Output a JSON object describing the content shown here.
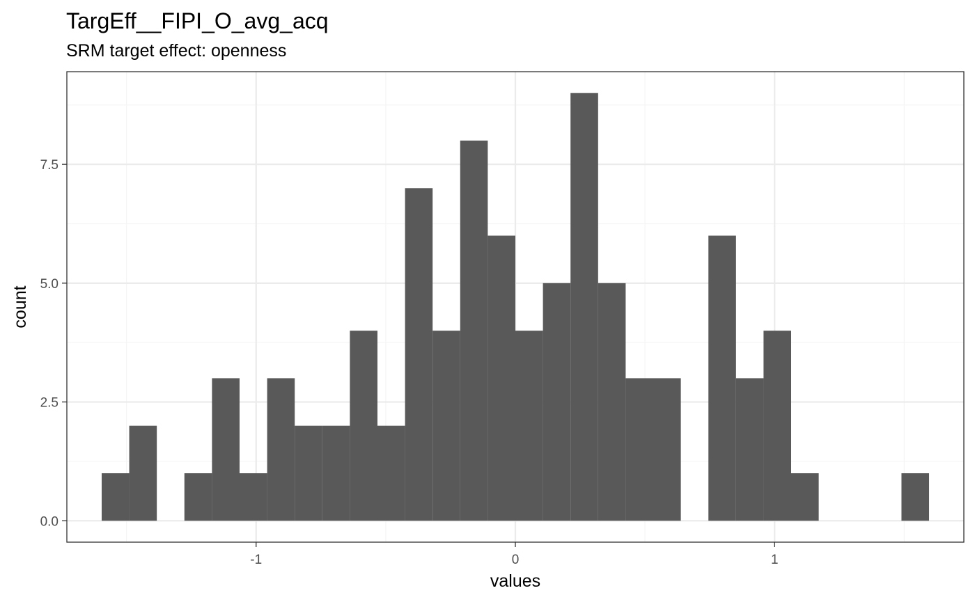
{
  "chart_data": {
    "type": "bar",
    "title": "TargEff__FIPI_O_avg_acq",
    "subtitle": "SRM target effect: openness",
    "xlabel": "values",
    "ylabel": "count",
    "xlim": [
      -1.73,
      1.73
    ],
    "ylim": [
      -0.45,
      9.45
    ],
    "x_ticks": [
      {
        "value": -1,
        "label": "-1"
      },
      {
        "value": 0,
        "label": "0"
      },
      {
        "value": 1,
        "label": "1"
      }
    ],
    "y_ticks": [
      {
        "value": 0,
        "label": "0.0"
      },
      {
        "value": 2.5,
        "label": "2.5"
      },
      {
        "value": 5,
        "label": "5.0"
      },
      {
        "value": 7.5,
        "label": "7.5"
      }
    ],
    "x_minor_breaks": [
      -1.5,
      -0.5,
      0.5,
      1.5
    ],
    "y_minor_breaks": [
      1.25,
      3.75,
      6.25,
      8.75
    ],
    "grid": true,
    "bin_width": 0.1064,
    "bins": [
      {
        "x0": -1.5957,
        "count": 1
      },
      {
        "x0": -1.4894,
        "count": 2
      },
      {
        "x0": -1.383,
        "count": 0
      },
      {
        "x0": -1.2766,
        "count": 1
      },
      {
        "x0": -1.1702,
        "count": 3
      },
      {
        "x0": -1.0638,
        "count": 1
      },
      {
        "x0": -0.9574,
        "count": 3
      },
      {
        "x0": -0.8511,
        "count": 2
      },
      {
        "x0": -0.7447,
        "count": 2
      },
      {
        "x0": -0.6383,
        "count": 4
      },
      {
        "x0": -0.5319,
        "count": 2
      },
      {
        "x0": -0.4255,
        "count": 7
      },
      {
        "x0": -0.3191,
        "count": 4
      },
      {
        "x0": -0.2128,
        "count": 8
      },
      {
        "x0": -0.1064,
        "count": 6
      },
      {
        "x0": 0.0,
        "count": 4
      },
      {
        "x0": 0.1064,
        "count": 5
      },
      {
        "x0": 0.2128,
        "count": 9
      },
      {
        "x0": 0.3191,
        "count": 5
      },
      {
        "x0": 0.4255,
        "count": 3
      },
      {
        "x0": 0.5319,
        "count": 3
      },
      {
        "x0": 0.6383,
        "count": 0
      },
      {
        "x0": 0.7447,
        "count": 6
      },
      {
        "x0": 0.8511,
        "count": 3
      },
      {
        "x0": 0.9574,
        "count": 4
      },
      {
        "x0": 1.0638,
        "count": 1
      },
      {
        "x0": 1.1702,
        "count": 0
      },
      {
        "x0": 1.2766,
        "count": 0
      },
      {
        "x0": 1.383,
        "count": 0
      },
      {
        "x0": 1.4894,
        "count": 1
      }
    ],
    "colors": {
      "bar": "#595959",
      "grid_major": "#ebebeb",
      "grid_minor": "#f5f5f5",
      "panel_border": "#333333",
      "tick": "#333333"
    }
  }
}
